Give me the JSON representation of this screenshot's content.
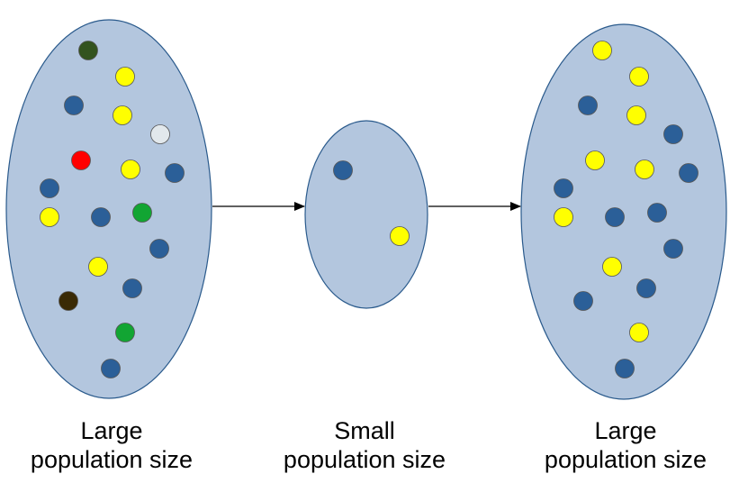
{
  "colors": {
    "population_fill": "#b3c6de",
    "population_stroke": "#2a5a8c",
    "arrow": "#000000",
    "blue": "#2b5f98",
    "yellow": "#ffff00",
    "dark_green": "#33531e",
    "light_gray": "#e2e8ec",
    "red": "#ff0000",
    "green": "#12a533",
    "dark_brown": "#3a2a05",
    "dot_outline": "#555555"
  },
  "populations": [
    {
      "caption_line1": "Large",
      "caption_line2": "population size",
      "dots": [
        "dark_green",
        "yellow",
        "blue",
        "yellow",
        "light_gray",
        "red",
        "yellow",
        "blue",
        "blue",
        "yellow",
        "blue",
        "green",
        "blue",
        "yellow",
        "blue",
        "dark_brown",
        "green",
        "blue"
      ]
    },
    {
      "caption_line1": "Small",
      "caption_line2": "population size",
      "dots": [
        "blue",
        "yellow"
      ]
    },
    {
      "caption_line1": "Large",
      "caption_line2": "population size",
      "dots": [
        "yellow",
        "yellow",
        "blue",
        "yellow",
        "blue",
        "yellow",
        "yellow",
        "blue",
        "blue",
        "yellow",
        "blue",
        "blue",
        "blue",
        "yellow",
        "blue",
        "blue",
        "yellow",
        "blue"
      ]
    }
  ]
}
